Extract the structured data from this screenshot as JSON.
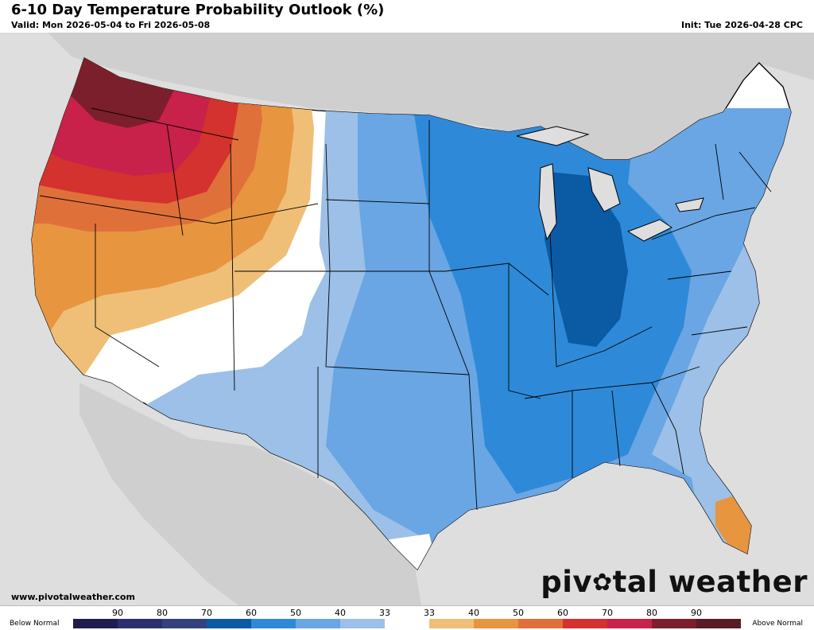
{
  "header": {
    "title": "6-10 Day Temperature Probability Outlook (%)",
    "valid": "Valid: Mon 2026-05-04 to Fri 2026-05-08",
    "init": "Init: Tue 2026-04-28 CPC"
  },
  "footer": {
    "website": "www.pivotalweather.com",
    "brand_pre": "piv",
    "brand_post": "tal weather"
  },
  "legend": {
    "below_label": "Below Normal",
    "above_label": "Above Normal",
    "ticks": [
      "90",
      "80",
      "70",
      "60",
      "50",
      "40",
      "33",
      "33",
      "40",
      "50",
      "60",
      "70",
      "80",
      "90"
    ],
    "colors": [
      "#1f1c4f",
      "#2b2f6e",
      "#33427d",
      "#0b5aa4",
      "#2e8ad8",
      "#69a6e3",
      "#9cc0e7",
      "#ffffff",
      "#efbf78",
      "#e8953f",
      "#e0703a",
      "#d3322e",
      "#c8214a",
      "#7a1f2b",
      "#5a1a26"
    ]
  },
  "map_colors": {
    "land": "#ffffff",
    "ocean": "#dcdcdc",
    "other_land": "#cfcfcf",
    "border": "#000000"
  }
}
